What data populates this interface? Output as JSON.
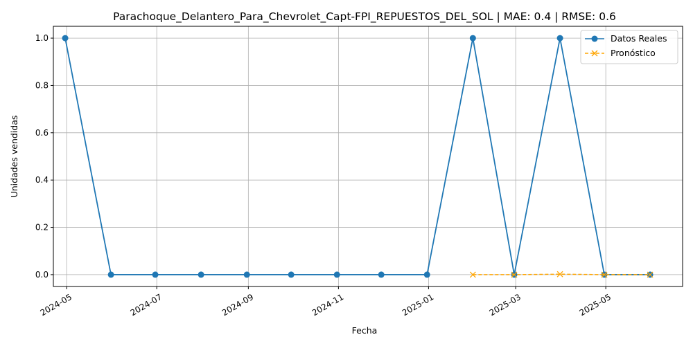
{
  "chart_data": {
    "type": "line",
    "title": "Parachoque_Delantero_Para_Chevrolet_Capt-FPI_REPUESTOS_DEL_SOL | MAE: 0.4 | RMSE: 0.6",
    "xlabel": "Fecha",
    "ylabel": "Unidades vendidas",
    "xlim": [
      "2024-04-22",
      "2025-06-22"
    ],
    "ylim": [
      -0.05,
      1.05
    ],
    "x_ticks": [
      "2024-05",
      "2024-07",
      "2024-09",
      "2024-11",
      "2025-01",
      "2025-03",
      "2025-05"
    ],
    "y_ticks": [
      "0.0",
      "0.2",
      "0.4",
      "0.6",
      "0.8",
      "1.0"
    ],
    "grid": true,
    "legend_position": "top-right",
    "series": [
      {
        "name": "Datos Reales",
        "color": "#1f77b4",
        "marker": "circle",
        "linestyle": "solid",
        "x": [
          "2024-04-30",
          "2024-05-31",
          "2024-06-30",
          "2024-07-31",
          "2024-08-31",
          "2024-09-30",
          "2024-10-31",
          "2024-11-30",
          "2024-12-31",
          "2025-01-31",
          "2025-02-28",
          "2025-03-31",
          "2025-04-30",
          "2025-05-31"
        ],
        "values": [
          1,
          0,
          0,
          0,
          0,
          0,
          0,
          0,
          0,
          1,
          0,
          1,
          0,
          0
        ]
      },
      {
        "name": "Pronóstico",
        "color": "#ffa500",
        "marker": "x",
        "linestyle": "dashed",
        "x": [
          "2025-01-31",
          "2025-02-28",
          "2025-03-31",
          "2025-04-30",
          "2025-05-31"
        ],
        "values": [
          0,
          0,
          0.002,
          0,
          0
        ]
      }
    ]
  }
}
